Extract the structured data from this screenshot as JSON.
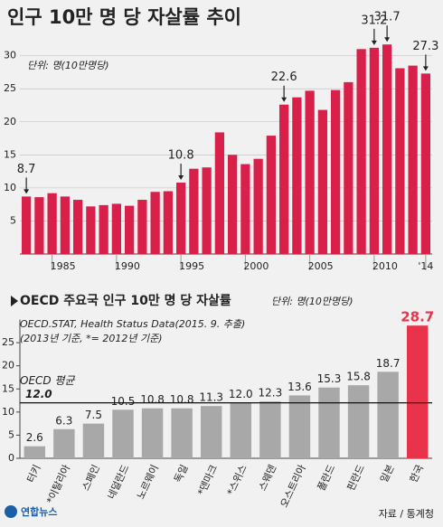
{
  "chart_data": [
    {
      "type": "bar",
      "title": "인구 10만 명 당 자살률 추이",
      "unit": "단위: 명(10만명당)",
      "x": [
        1983,
        1984,
        1985,
        1986,
        1987,
        1988,
        1989,
        1990,
        1991,
        1992,
        1993,
        1994,
        1995,
        1996,
        1997,
        1998,
        1999,
        2000,
        2001,
        2002,
        2003,
        2004,
        2005,
        2006,
        2007,
        2008,
        2009,
        2010,
        2011,
        2012,
        2013,
        2014
      ],
      "values": [
        8.7,
        8.6,
        9.2,
        8.7,
        8.2,
        7.2,
        7.4,
        7.6,
        7.3,
        8.2,
        9.4,
        9.5,
        10.8,
        12.9,
        13.1,
        18.4,
        15.0,
        13.6,
        14.4,
        17.9,
        22.6,
        23.7,
        24.7,
        21.8,
        24.8,
        26.0,
        31.0,
        31.2,
        31.7,
        28.1,
        28.5,
        27.3
      ],
      "value_labels": [
        "8.7",
        null,
        null,
        null,
        null,
        null,
        null,
        null,
        null,
        null,
        null,
        null,
        "10.8",
        null,
        null,
        null,
        null,
        null,
        null,
        null,
        "22.6",
        null,
        null,
        null,
        null,
        null,
        null,
        "31.2",
        "31.7",
        null,
        null,
        "27.3"
      ],
      "color": "#d8204a",
      "ylim": [
        0,
        32
      ],
      "yticks": [
        5,
        10,
        15,
        20,
        25,
        30
      ],
      "xticks": [
        1985,
        1990,
        1995,
        2000,
        2005,
        2010,
        {
          "value": 2014,
          "label": "'14"
        }
      ],
      "grid": true
    },
    {
      "type": "bar",
      "title": "OECD 주요국 인구 10만 명 당 자살률",
      "unit": "단위: 명(10만명당)",
      "notes": [
        "OECD.STAT, Health Status Data(2015. 9. 추출)",
        "(2013년 기준, *= 2012년 기준)"
      ],
      "categories": [
        "터키",
        "*이탈리아",
        "스페인",
        "네덜란드",
        "노르웨이",
        "독일",
        "*덴마크",
        "*스위스",
        "스웨덴",
        "오스트리아",
        "폴란드",
        "핀란드",
        "일본",
        "한국"
      ],
      "values": [
        2.6,
        6.3,
        7.5,
        10.5,
        10.8,
        10.8,
        11.3,
        12.0,
        12.3,
        13.6,
        15.3,
        15.8,
        18.7,
        28.7
      ],
      "value_labels": [
        "2.6",
        "6.3",
        "7.5",
        "10.5",
        "10.8",
        "10.8",
        "11.3",
        "12.0",
        "12.3",
        "13.6",
        "15.3",
        "15.8",
        "18.7",
        "28.7"
      ],
      "colors": [
        "#a8a8a8",
        "#a8a8a8",
        "#a8a8a8",
        "#a8a8a8",
        "#a8a8a8",
        "#a8a8a8",
        "#a8a8a8",
        "#a8a8a8",
        "#a8a8a8",
        "#a8a8a8",
        "#a8a8a8",
        "#a8a8a8",
        "#a8a8a8",
        "#e8334a"
      ],
      "ylim": [
        0,
        30
      ],
      "yticks": [
        0,
        5,
        10,
        15,
        20,
        25
      ],
      "reference": {
        "label": "OECD 평균",
        "value": 12.0,
        "value_label": "12.0"
      }
    }
  ],
  "footer": {
    "logo": "연합뉴스",
    "source": "자료 / 통계청"
  }
}
